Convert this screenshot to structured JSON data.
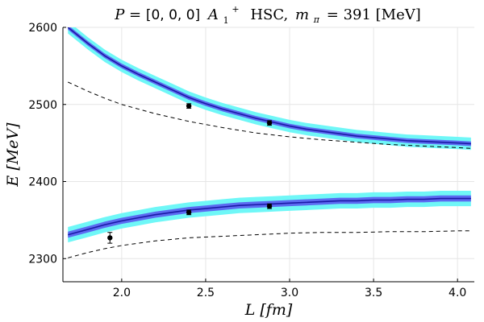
{
  "chart_data": {
    "type": "line",
    "title": {
      "prefix": "P = ",
      "momentum": "[0, 0, 0]",
      "irrep": "A",
      "irrep_sub": "1",
      "irrep_sup": "+",
      "ensemble": "HSC",
      "mass_label": "m",
      "mass_sub": "π",
      "mass_value": "= 391 [MeV]"
    },
    "xlabel": "L [fm]",
    "ylabel": "E [MeV]",
    "xlim": [
      1.65,
      4.1
    ],
    "ylim": [
      2270,
      2600
    ],
    "xticks": [
      2.0,
      2.5,
      3.0,
      3.5,
      4.0
    ],
    "xtick_labels": [
      "2.0",
      "2.5",
      "3.0",
      "3.5",
      "4.0"
    ],
    "yticks": [
      2300,
      2400,
      2500,
      2600
    ],
    "ytick_labels": [
      "2300",
      "2400",
      "2500",
      "2600"
    ],
    "grid": true,
    "colors": {
      "fit_line": "#1a1aa6",
      "fit_band_inner": "#5a5af0",
      "fit_band_outer": "#6ff7f7",
      "noninteracting": "#000000",
      "points": "#000000"
    },
    "series": [
      {
        "name": "upper level fit",
        "kind": "fit",
        "x": [
          1.68,
          1.8,
          1.9,
          2.0,
          2.1,
          2.2,
          2.3,
          2.4,
          2.5,
          2.6,
          2.7,
          2.8,
          2.9,
          3.0,
          3.1,
          3.2,
          3.3,
          3.4,
          3.5,
          3.6,
          3.7,
          3.8,
          3.9,
          4.0,
          4.08
        ],
        "y": [
          2600,
          2579,
          2563,
          2550,
          2539,
          2529,
          2519,
          2509,
          2501,
          2494,
          2488,
          2482,
          2477,
          2472,
          2468,
          2465,
          2462,
          2459,
          2457,
          2455,
          2453,
          2452,
          2451,
          2450,
          2449
        ],
        "inner_halfwidth": 3,
        "outer_halfwidth": 8
      },
      {
        "name": "lower level fit",
        "kind": "fit",
        "x": [
          1.68,
          1.8,
          1.9,
          2.0,
          2.1,
          2.2,
          2.3,
          2.4,
          2.5,
          2.6,
          2.7,
          2.8,
          2.9,
          3.0,
          3.1,
          3.2,
          3.3,
          3.4,
          3.5,
          3.6,
          3.7,
          3.8,
          3.9,
          4.0,
          4.08
        ],
        "y": [
          2331,
          2338,
          2344,
          2349,
          2353,
          2357,
          2360,
          2363,
          2365,
          2367,
          2369,
          2370,
          2371,
          2372,
          2373,
          2374,
          2375,
          2375,
          2376,
          2376,
          2377,
          2377,
          2378,
          2378,
          2378
        ],
        "inner_halfwidth": 4,
        "outer_halfwidth": 10
      },
      {
        "name": "upper non-interacting level",
        "kind": "dashed",
        "x": [
          1.68,
          1.8,
          1.9,
          2.0,
          2.2,
          2.4,
          2.6,
          2.8,
          3.0,
          3.2,
          3.4,
          3.6,
          3.8,
          4.0,
          4.08
        ],
        "y": [
          2529,
          2517,
          2508,
          2500,
          2488,
          2478,
          2470,
          2463,
          2458,
          2454,
          2451,
          2448,
          2446,
          2444,
          2443
        ]
      },
      {
        "name": "lower non-interacting level",
        "kind": "dashed",
        "x": [
          1.68,
          1.8,
          1.9,
          2.0,
          2.2,
          2.4,
          2.6,
          2.8,
          3.0,
          3.2,
          3.4,
          3.6,
          3.8,
          4.0,
          4.08
        ],
        "y": [
          2301,
          2308,
          2313,
          2317,
          2323,
          2327,
          2329,
          2331,
          2333,
          2334,
          2334,
          2335,
          2335,
          2336,
          2336
        ]
      }
    ],
    "points": [
      {
        "x": 1.93,
        "y": 2327,
        "err": 7
      },
      {
        "x": 2.4,
        "y": 2360,
        "err": 3
      },
      {
        "x": 2.4,
        "y": 2498,
        "err": 3
      },
      {
        "x": 2.88,
        "y": 2368,
        "err": 3
      },
      {
        "x": 2.88,
        "y": 2476,
        "err": 3
      }
    ]
  }
}
